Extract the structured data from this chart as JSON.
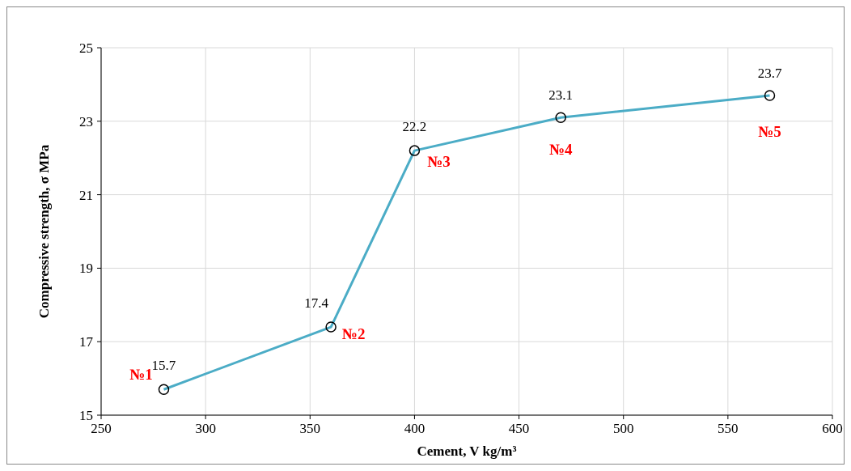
{
  "chart_data": {
    "type": "line",
    "xlabel": "Cement, V kg/m³",
    "ylabel": "Compressive strength, σ MPa",
    "x": [
      280,
      360,
      400,
      470,
      570
    ],
    "series": [
      {
        "color": "#4bacc6",
        "values": [
          15.7,
          17.4,
          22.2,
          23.1,
          23.7
        ]
      }
    ],
    "xlim": [
      250,
      600
    ],
    "xticks": [
      250,
      300,
      350,
      400,
      450,
      500,
      550,
      600
    ],
    "ylim": [
      15,
      25
    ],
    "yticks": [
      15,
      17,
      19,
      21,
      23,
      25
    ],
    "grid": true,
    "marker": "circle",
    "line_style": "solid",
    "data_labels": true,
    "annotations": [
      {
        "text": "№1",
        "x": 280,
        "y": 15.7
      },
      {
        "text": "№2",
        "x": 360,
        "y": 17.4
      },
      {
        "text": "№3",
        "x": 400,
        "y": 22.2
      },
      {
        "text": "№4",
        "x": 470,
        "y": 23.1
      },
      {
        "text": "№5",
        "x": 570,
        "y": 23.7
      }
    ]
  }
}
